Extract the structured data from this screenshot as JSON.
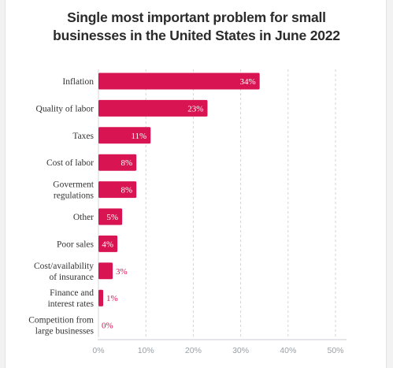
{
  "chart_data": {
    "type": "bar",
    "orientation": "horizontal",
    "title_lines": [
      "Single most important problem for small",
      "businesses in the United States in June 2022"
    ],
    "categories": [
      [
        "Inflation"
      ],
      [
        "Quality of labor"
      ],
      [
        "Taxes"
      ],
      [
        "Cost of labor"
      ],
      [
        "Goverment",
        "regulations"
      ],
      [
        "Other"
      ],
      [
        "Poor sales"
      ],
      [
        "Cost/availability",
        "of insurance"
      ],
      [
        "Finance and",
        "interest rates"
      ],
      [
        "Competition from",
        "large businesses"
      ]
    ],
    "values": [
      34,
      23,
      11,
      8,
      8,
      5,
      4,
      3,
      1,
      0
    ],
    "value_labels": [
      "34%",
      "23%",
      "11%",
      "8%",
      "8%",
      "5%",
      "4%",
      "3%",
      "1%",
      "0%"
    ],
    "xlim": [
      0,
      50
    ],
    "xticks": [
      0,
      10,
      20,
      30,
      40,
      50
    ],
    "xtick_labels": [
      "0%",
      "10%",
      "20%",
      "30%",
      "40%",
      "50%"
    ],
    "grid": "vertical dashed",
    "bar_color": "#d81552"
  }
}
